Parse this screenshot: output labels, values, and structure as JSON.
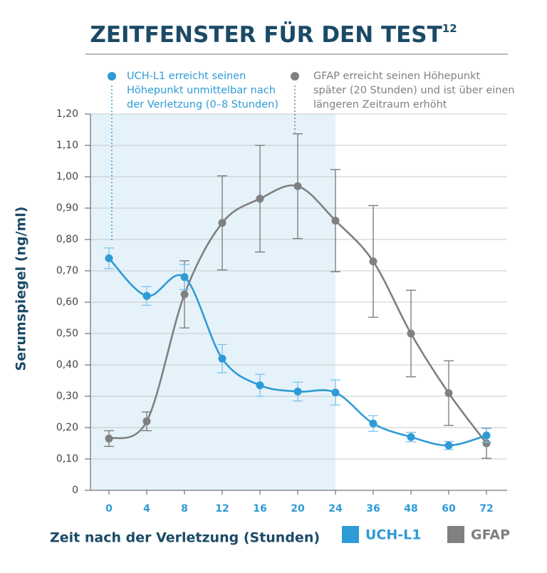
{
  "chart_data": {
    "type": "line",
    "title": "ZEITFENSTER FÜR DEN TEST",
    "title_note": "12",
    "x_label": "Zeit nach der Verletzung (Stunden)",
    "y_label": "Serumspiegel (ng/ml)",
    "categories": [
      "0",
      "4",
      "8",
      "12",
      "16",
      "20",
      "24",
      "36",
      "48",
      "60",
      "72"
    ],
    "series": [
      {
        "name": "UCH-L1",
        "color": "#2e9bd6",
        "values": [
          0.74,
          0.62,
          0.68,
          0.42,
          0.335,
          0.315,
          0.312,
          0.213,
          0.17,
          0.143,
          0.175
        ],
        "errors": [
          0.033,
          0.03,
          0.04,
          0.045,
          0.035,
          0.03,
          0.04,
          0.025,
          0.015,
          0.013,
          0.022
        ]
      },
      {
        "name": "GFAP",
        "color": "#808080",
        "values": [
          0.165,
          0.22,
          0.625,
          0.853,
          0.93,
          0.97,
          0.86,
          0.73,
          0.5,
          0.31,
          0.15
        ],
        "errors": [
          0.025,
          0.03,
          0.107,
          0.15,
          0.17,
          0.167,
          0.163,
          0.178,
          0.138,
          0.103,
          0.048
        ]
      }
    ],
    "annotations": [
      {
        "lines": [
          "UCH-L1 erreicht seinen",
          "Höhepunkt unmittelbar nach",
          "der Verletzung (0–8 Stunden)"
        ],
        "color": "#2e9bd6"
      },
      {
        "lines": [
          "GFAP erreicht seinen Höhepunkt",
          "später (20 Stunden) und ist über einen",
          "längeren Zeitraum erhöht"
        ],
        "color": "#808080"
      }
    ],
    "ylim": [
      0,
      1.2
    ],
    "yticks": [
      0,
      {
        "value": 0.1,
        "label": "0,10"
      },
      {
        "value": 0.2,
        "label": "0,20"
      },
      {
        "value": 0.3,
        "label": "0,30"
      },
      {
        "value": 0.4,
        "label": "0,40"
      },
      {
        "value": 0.5,
        "label": "0,50"
      },
      {
        "value": 0.6,
        "label": "0,60"
      },
      {
        "value": 0.7,
        "label": "0,70"
      },
      {
        "value": 0.8,
        "label": "0,80"
      },
      {
        "value": 0.9,
        "label": "0,90"
      },
      {
        "value": 1.0,
        "label": "1,00"
      },
      {
        "value": 1.1,
        "label": "1,10"
      },
      {
        "value": 1.2,
        "label": "1,20"
      }
    ],
    "grid": true,
    "legend": "bottom"
  }
}
